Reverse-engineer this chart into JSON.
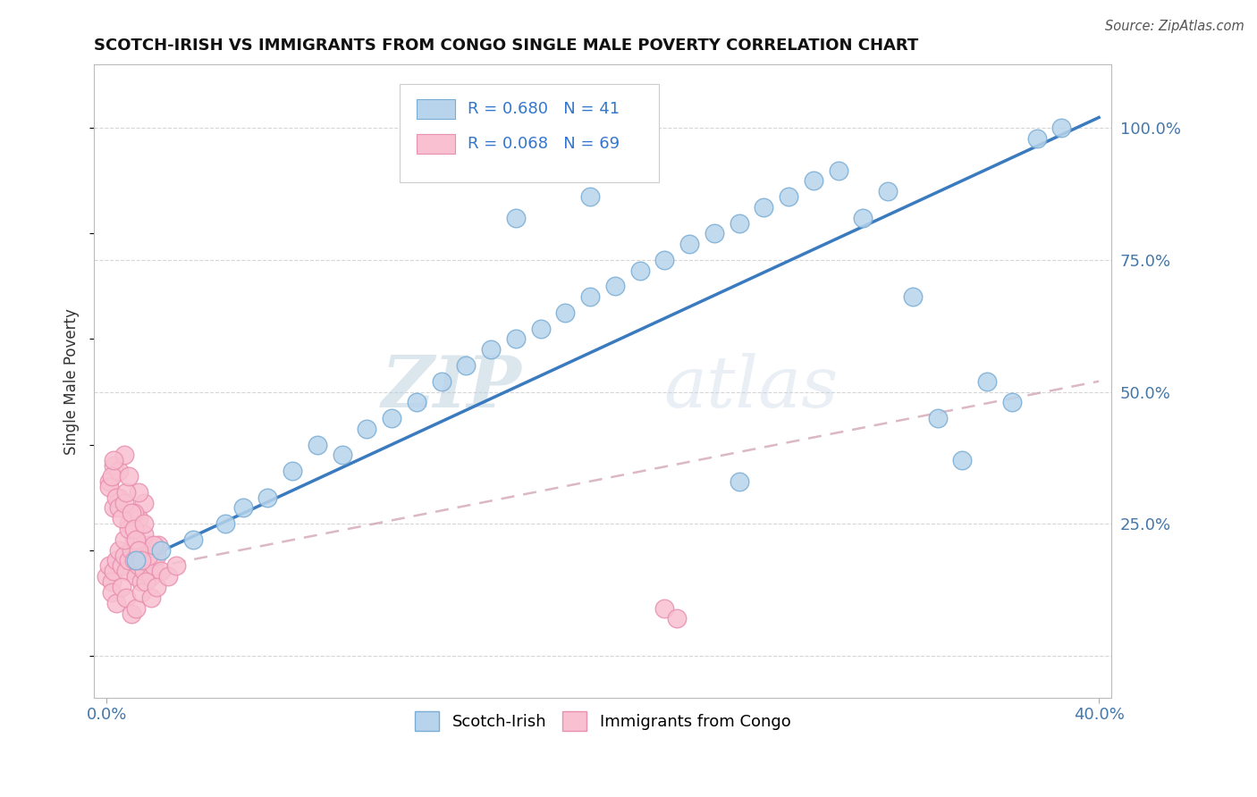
{
  "title": "SCOTCH-IRISH VS IMMIGRANTS FROM CONGO SINGLE MALE POVERTY CORRELATION CHART",
  "source": "Source: ZipAtlas.com",
  "ylabel": "Single Male Poverty",
  "xlim": [
    -0.005,
    0.405
  ],
  "ylim": [
    -0.08,
    1.12
  ],
  "blue_R": 0.68,
  "blue_N": 41,
  "pink_R": 0.068,
  "pink_N": 69,
  "blue_scatter_color": "#b8d4ec",
  "blue_scatter_edge": "#7aadd4",
  "pink_scatter_color": "#f8c0d0",
  "pink_scatter_edge": "#e890b0",
  "blue_line_color": "#3a7abf",
  "pink_line_color": "#d0a0b0",
  "watermark_zip": "ZIP",
  "watermark_atlas": "atlas",
  "legend_blue_label": "Scotch-Irish",
  "legend_pink_label": "Immigrants from Congo",
  "blue_line_x0": 0.0,
  "blue_line_y0": 0.15,
  "blue_line_x1": 0.4,
  "blue_line_y1": 1.02,
  "pink_line_x0": 0.0,
  "pink_line_y0": 0.15,
  "pink_line_x1": 0.4,
  "pink_line_y1": 0.52,
  "blue_scatter_x": [
    0.012,
    0.022,
    0.035,
    0.048,
    0.055,
    0.065,
    0.075,
    0.085,
    0.095,
    0.105,
    0.115,
    0.125,
    0.135,
    0.145,
    0.155,
    0.165,
    0.175,
    0.185,
    0.195,
    0.205,
    0.215,
    0.225,
    0.235,
    0.245,
    0.255,
    0.265,
    0.275,
    0.285,
    0.295,
    0.305,
    0.315,
    0.325,
    0.335,
    0.345,
    0.355,
    0.365,
    0.255,
    0.195,
    0.165,
    0.375,
    0.385
  ],
  "blue_scatter_y": [
    0.18,
    0.2,
    0.22,
    0.25,
    0.28,
    0.3,
    0.35,
    0.4,
    0.38,
    0.43,
    0.45,
    0.48,
    0.52,
    0.55,
    0.58,
    0.6,
    0.62,
    0.65,
    0.68,
    0.7,
    0.73,
    0.75,
    0.78,
    0.8,
    0.82,
    0.85,
    0.87,
    0.9,
    0.92,
    0.83,
    0.88,
    0.68,
    0.45,
    0.37,
    0.52,
    0.48,
    0.33,
    0.87,
    0.83,
    0.98,
    1.0
  ],
  "pink_scatter_x": [
    0.0,
    0.001,
    0.002,
    0.003,
    0.004,
    0.005,
    0.006,
    0.007,
    0.008,
    0.009,
    0.01,
    0.011,
    0.012,
    0.013,
    0.014,
    0.015,
    0.016,
    0.017,
    0.018,
    0.019,
    0.02,
    0.021,
    0.022,
    0.003,
    0.005,
    0.007,
    0.009,
    0.011,
    0.013,
    0.015,
    0.001,
    0.003,
    0.005,
    0.007,
    0.009,
    0.011,
    0.013,
    0.015,
    0.017,
    0.019,
    0.002,
    0.004,
    0.006,
    0.008,
    0.01,
    0.012,
    0.014,
    0.016,
    0.018,
    0.02,
    0.001,
    0.002,
    0.003,
    0.004,
    0.005,
    0.006,
    0.007,
    0.008,
    0.009,
    0.01,
    0.011,
    0.012,
    0.013,
    0.014,
    0.015,
    0.225,
    0.23,
    0.025,
    0.028
  ],
  "pink_scatter_y": [
    0.15,
    0.17,
    0.14,
    0.16,
    0.18,
    0.2,
    0.17,
    0.19,
    0.16,
    0.18,
    0.2,
    0.22,
    0.15,
    0.17,
    0.14,
    0.16,
    0.18,
    0.21,
    0.15,
    0.17,
    0.19,
    0.21,
    0.16,
    0.28,
    0.3,
    0.22,
    0.25,
    0.18,
    0.26,
    0.29,
    0.33,
    0.36,
    0.35,
    0.38,
    0.24,
    0.27,
    0.31,
    0.23,
    0.19,
    0.21,
    0.12,
    0.1,
    0.13,
    0.11,
    0.08,
    0.09,
    0.12,
    0.14,
    0.11,
    0.13,
    0.32,
    0.34,
    0.37,
    0.3,
    0.28,
    0.26,
    0.29,
    0.31,
    0.34,
    0.27,
    0.24,
    0.22,
    0.2,
    0.18,
    0.25,
    0.09,
    0.07,
    0.15,
    0.17
  ]
}
